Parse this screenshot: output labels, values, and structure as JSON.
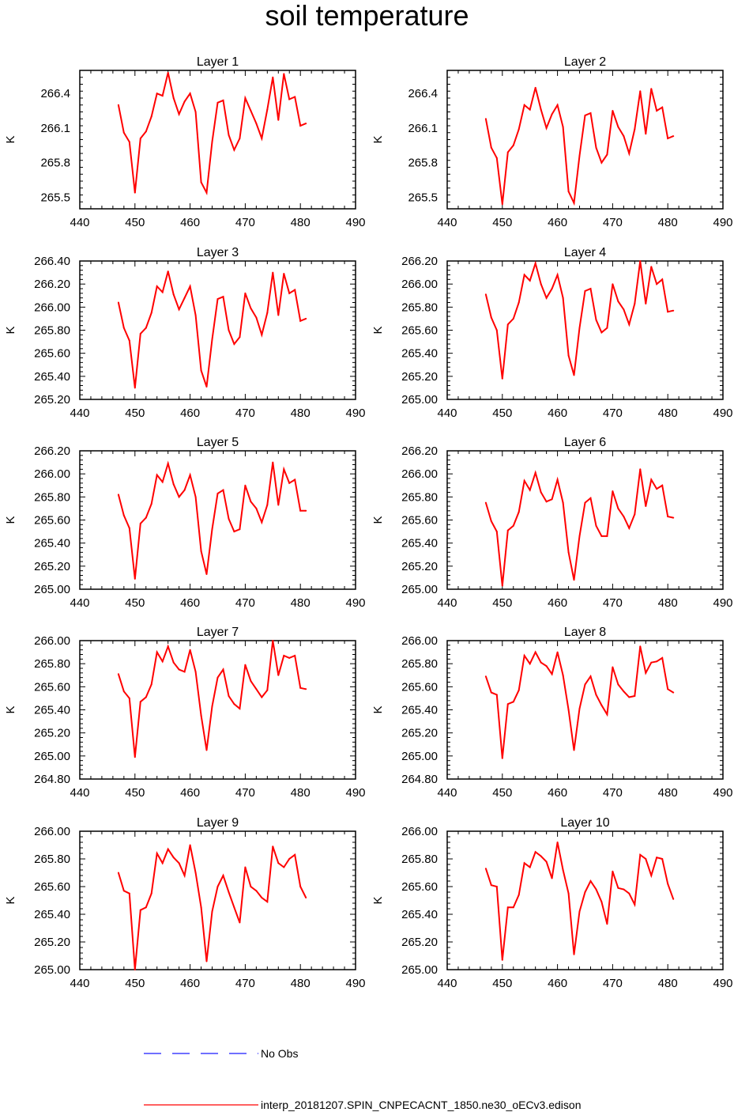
{
  "title": "soil temperature",
  "chart_data": [
    {
      "type": "line",
      "title": "Layer 1",
      "ylabel": "K",
      "xlim": [
        440,
        490
      ],
      "xticks": [
        440,
        450,
        460,
        470,
        480,
        490
      ],
      "ylim": [
        265.4,
        266.6
      ],
      "yticks": [
        265.5,
        265.8,
        266.1,
        266.4
      ],
      "ytick_decimals": 1,
      "x": [
        447,
        448,
        449,
        450,
        451,
        452,
        453,
        454,
        455,
        456,
        457,
        458,
        459,
        460,
        461,
        462,
        463,
        464,
        465,
        466,
        467,
        468,
        469,
        470,
        471,
        472,
        473,
        474,
        475,
        476,
        477,
        478,
        479,
        480,
        481
      ],
      "series": [
        {
          "name": "interp_20181207.SPIN_CNPECACNT_1850.ne30_oECv3.edison",
          "values": [
            266.3,
            266.06,
            265.98,
            265.54,
            266.01,
            266.07,
            266.2,
            266.4,
            266.38,
            266.58,
            266.36,
            266.22,
            266.33,
            266.4,
            266.24,
            265.63,
            265.54,
            265.98,
            266.32,
            266.34,
            266.04,
            265.91,
            266.01,
            266.36,
            266.25,
            266.14,
            266.01,
            266.26,
            266.54,
            266.17,
            266.57,
            266.35,
            266.37,
            266.12,
            266.14
          ]
        }
      ]
    },
    {
      "type": "line",
      "title": "Layer 2",
      "ylabel": "K",
      "xlim": [
        440,
        490
      ],
      "xticks": [
        440,
        450,
        460,
        470,
        480,
        490
      ],
      "ylim": [
        265.4,
        266.6
      ],
      "yticks": [
        265.5,
        265.8,
        266.1,
        266.4
      ],
      "ytick_decimals": 1,
      "x": [
        447,
        448,
        449,
        450,
        451,
        452,
        453,
        454,
        455,
        456,
        457,
        458,
        459,
        460,
        461,
        462,
        463,
        464,
        465,
        466,
        467,
        468,
        469,
        470,
        471,
        472,
        473,
        474,
        475,
        476,
        477,
        478,
        479,
        480,
        481
      ],
      "series": [
        {
          "name": "interp_20181207.SPIN_CNPECACNT_1850.ne30_oECv3.edison",
          "values": [
            266.18,
            265.93,
            265.84,
            265.44,
            265.89,
            265.95,
            266.09,
            266.3,
            266.26,
            266.45,
            266.26,
            266.1,
            266.22,
            266.3,
            266.11,
            265.55,
            265.45,
            265.86,
            266.21,
            266.23,
            265.93,
            265.8,
            265.87,
            266.25,
            266.11,
            266.03,
            265.88,
            266.09,
            266.42,
            266.05,
            266.44,
            266.25,
            266.28,
            266.01,
            266.03
          ]
        }
      ]
    },
    {
      "type": "line",
      "title": "Layer 3",
      "ylabel": "K",
      "xlim": [
        440,
        490
      ],
      "xticks": [
        440,
        450,
        460,
        470,
        480,
        490
      ],
      "ylim": [
        265.2,
        266.4
      ],
      "yticks": [
        265.2,
        265.4,
        265.6,
        265.8,
        266.0,
        266.2,
        266.4
      ],
      "ytick_decimals": 2,
      "x": [
        447,
        448,
        449,
        450,
        451,
        452,
        453,
        454,
        455,
        456,
        457,
        458,
        459,
        460,
        461,
        462,
        463,
        464,
        465,
        466,
        467,
        468,
        469,
        470,
        471,
        472,
        473,
        474,
        475,
        476,
        477,
        478,
        479,
        480,
        481
      ],
      "series": [
        {
          "name": "interp_20181207.SPIN_CNPECACNT_1850.ne30_oECv3.edison",
          "values": [
            266.04,
            265.82,
            265.71,
            265.3,
            265.77,
            265.82,
            265.95,
            266.18,
            266.13,
            266.31,
            266.11,
            265.98,
            266.08,
            266.18,
            265.93,
            265.45,
            265.31,
            265.72,
            266.07,
            266.09,
            265.8,
            265.68,
            265.74,
            266.12,
            265.99,
            265.91,
            265.76,
            265.95,
            266.3,
            265.93,
            266.29,
            266.12,
            266.15,
            265.88,
            265.9
          ]
        }
      ]
    },
    {
      "type": "line",
      "title": "Layer 4",
      "ylabel": "K",
      "xlim": [
        440,
        490
      ],
      "xticks": [
        440,
        450,
        460,
        470,
        480,
        490
      ],
      "ylim": [
        265.0,
        266.2
      ],
      "yticks": [
        265.0,
        265.2,
        265.4,
        265.6,
        265.8,
        266.0,
        266.2
      ],
      "ytick_decimals": 2,
      "x": [
        447,
        448,
        449,
        450,
        451,
        452,
        453,
        454,
        455,
        456,
        457,
        458,
        459,
        460,
        461,
        462,
        463,
        464,
        465,
        466,
        467,
        468,
        469,
        470,
        471,
        472,
        473,
        474,
        475,
        476,
        477,
        478,
        479,
        480,
        481
      ],
      "series": [
        {
          "name": "interp_20181207.SPIN_CNPECACNT_1850.ne30_oECv3.edison",
          "values": [
            265.91,
            265.71,
            265.6,
            265.18,
            265.65,
            265.7,
            265.84,
            266.08,
            266.03,
            266.18,
            266.0,
            265.88,
            265.96,
            266.08,
            265.88,
            265.38,
            265.21,
            265.62,
            265.94,
            265.96,
            265.69,
            265.58,
            265.62,
            266.0,
            265.85,
            265.78,
            265.65,
            265.83,
            266.2,
            265.83,
            266.15,
            266.0,
            266.04,
            265.76,
            265.77
          ]
        }
      ]
    },
    {
      "type": "line",
      "title": "Layer 5",
      "ylabel": "K",
      "xlim": [
        440,
        490
      ],
      "xticks": [
        440,
        450,
        460,
        470,
        480,
        490
      ],
      "ylim": [
        265.0,
        266.2
      ],
      "yticks": [
        265.0,
        265.2,
        265.4,
        265.6,
        265.8,
        266.0,
        266.2
      ],
      "ytick_decimals": 2,
      "x": [
        447,
        448,
        449,
        450,
        451,
        452,
        453,
        454,
        455,
        456,
        457,
        458,
        459,
        460,
        461,
        462,
        463,
        464,
        465,
        466,
        467,
        468,
        469,
        470,
        471,
        472,
        473,
        474,
        475,
        476,
        477,
        478,
        479,
        480,
        481
      ],
      "series": [
        {
          "name": "interp_20181207.SPIN_CNPECACNT_1850.ne30_oECv3.edison",
          "values": [
            265.82,
            265.64,
            265.53,
            265.09,
            265.57,
            265.62,
            265.74,
            265.99,
            265.93,
            266.09,
            265.91,
            265.8,
            265.86,
            265.99,
            265.8,
            265.33,
            265.13,
            265.52,
            265.83,
            265.86,
            265.61,
            265.5,
            265.52,
            265.9,
            265.76,
            265.7,
            265.58,
            265.73,
            266.1,
            265.73,
            266.04,
            265.92,
            265.95,
            265.68,
            265.68
          ]
        }
      ]
    },
    {
      "type": "line",
      "title": "Layer 6",
      "ylabel": "K",
      "xlim": [
        440,
        490
      ],
      "xticks": [
        440,
        450,
        460,
        470,
        480,
        490
      ],
      "ylim": [
        265.0,
        266.2
      ],
      "yticks": [
        265.0,
        265.2,
        265.4,
        265.6,
        265.8,
        266.0,
        266.2
      ],
      "ytick_decimals": 2,
      "x": [
        447,
        448,
        449,
        450,
        451,
        452,
        453,
        454,
        455,
        456,
        457,
        458,
        459,
        460,
        461,
        462,
        463,
        464,
        465,
        466,
        467,
        468,
        469,
        470,
        471,
        472,
        473,
        474,
        475,
        476,
        477,
        478,
        479,
        480,
        481
      ],
      "series": [
        {
          "name": "interp_20181207.SPIN_CNPECACNT_1850.ne30_oECv3.edison",
          "values": [
            265.75,
            265.59,
            265.5,
            265.03,
            265.51,
            265.55,
            265.67,
            265.94,
            265.86,
            266.01,
            265.84,
            265.76,
            265.78,
            265.95,
            265.75,
            265.32,
            265.08,
            265.46,
            265.75,
            265.79,
            265.55,
            265.46,
            265.46,
            265.85,
            265.7,
            265.63,
            265.53,
            265.65,
            266.04,
            265.72,
            265.95,
            265.87,
            265.9,
            265.63,
            265.62
          ]
        }
      ]
    },
    {
      "type": "line",
      "title": "Layer 7",
      "ylabel": "K",
      "xlim": [
        440,
        490
      ],
      "xticks": [
        440,
        450,
        460,
        470,
        480,
        490
      ],
      "ylim": [
        264.8,
        266.0
      ],
      "yticks": [
        264.8,
        265.0,
        265.2,
        265.4,
        265.6,
        265.8,
        266.0
      ],
      "ytick_decimals": 2,
      "x": [
        447,
        448,
        449,
        450,
        451,
        452,
        453,
        454,
        455,
        456,
        457,
        458,
        459,
        460,
        461,
        462,
        463,
        464,
        465,
        466,
        467,
        468,
        469,
        470,
        471,
        472,
        473,
        474,
        475,
        476,
        477,
        478,
        479,
        480,
        481
      ],
      "series": [
        {
          "name": "interp_20181207.SPIN_CNPECACNT_1850.ne30_oECv3.edison",
          "values": [
            265.71,
            265.56,
            265.5,
            264.99,
            265.47,
            265.51,
            265.62,
            265.9,
            265.82,
            265.95,
            265.81,
            265.75,
            265.73,
            265.92,
            265.73,
            265.35,
            265.05,
            265.43,
            265.68,
            265.75,
            265.52,
            265.45,
            265.41,
            265.79,
            265.65,
            265.58,
            265.51,
            265.57,
            266.0,
            265.7,
            265.87,
            265.85,
            265.87,
            265.59,
            265.58
          ]
        }
      ]
    },
    {
      "type": "line",
      "title": "Layer 8",
      "ylabel": "K",
      "xlim": [
        440,
        490
      ],
      "xticks": [
        440,
        450,
        460,
        470,
        480,
        490
      ],
      "ylim": [
        264.8,
        266.0
      ],
      "yticks": [
        264.8,
        265.0,
        265.2,
        265.4,
        265.6,
        265.8,
        266.0
      ],
      "ytick_decimals": 2,
      "x": [
        447,
        448,
        449,
        450,
        451,
        452,
        453,
        454,
        455,
        456,
        457,
        458,
        459,
        460,
        461,
        462,
        463,
        464,
        465,
        466,
        467,
        468,
        469,
        470,
        471,
        472,
        473,
        474,
        475,
        476,
        477,
        478,
        479,
        480,
        481
      ],
      "series": [
        {
          "name": "interp_20181207.SPIN_CNPECACNT_1850.ne30_oECv3.edison",
          "values": [
            265.69,
            265.55,
            265.53,
            264.98,
            265.45,
            265.47,
            265.57,
            265.87,
            265.8,
            265.9,
            265.81,
            265.78,
            265.71,
            265.9,
            265.7,
            265.4,
            265.05,
            265.41,
            265.62,
            265.69,
            265.53,
            265.44,
            265.36,
            265.77,
            265.62,
            265.56,
            265.51,
            265.52,
            265.95,
            265.72,
            265.81,
            265.82,
            265.85,
            265.58,
            265.55
          ]
        }
      ]
    },
    {
      "type": "line",
      "title": "Layer 9",
      "ylabel": "K",
      "xlim": [
        440,
        490
      ],
      "xticks": [
        440,
        450,
        460,
        470,
        480,
        490
      ],
      "ylim": [
        265.0,
        266.0
      ],
      "yticks": [
        265.0,
        265.2,
        265.4,
        265.6,
        265.8,
        266.0
      ],
      "ytick_decimals": 2,
      "x": [
        447,
        448,
        449,
        450,
        451,
        452,
        453,
        454,
        455,
        456,
        457,
        458,
        459,
        460,
        461,
        462,
        463,
        464,
        465,
        466,
        467,
        468,
        469,
        470,
        471,
        472,
        473,
        474,
        475,
        476,
        477,
        478,
        479,
        480,
        481
      ],
      "series": [
        {
          "name": "interp_20181207.SPIN_CNPECACNT_1850.ne30_oECv3.edison",
          "values": [
            265.7,
            265.57,
            265.55,
            265.0,
            265.43,
            265.45,
            265.55,
            265.84,
            265.77,
            265.87,
            265.81,
            265.77,
            265.68,
            265.9,
            265.7,
            265.45,
            265.06,
            265.42,
            265.6,
            265.68,
            265.56,
            265.45,
            265.34,
            265.74,
            265.6,
            265.57,
            265.52,
            265.49,
            265.89,
            265.77,
            265.74,
            265.8,
            265.83,
            265.6,
            265.52
          ]
        }
      ]
    },
    {
      "type": "line",
      "title": "Layer 10",
      "ylabel": "K",
      "xlim": [
        440,
        490
      ],
      "xticks": [
        440,
        450,
        460,
        470,
        480,
        490
      ],
      "ylim": [
        265.0,
        266.0
      ],
      "yticks": [
        265.0,
        265.2,
        265.4,
        265.6,
        265.8,
        266.0
      ],
      "ytick_decimals": 2,
      "x": [
        447,
        448,
        449,
        450,
        451,
        452,
        453,
        454,
        455,
        456,
        457,
        458,
        459,
        460,
        461,
        462,
        463,
        464,
        465,
        466,
        467,
        468,
        469,
        470,
        471,
        472,
        473,
        474,
        475,
        476,
        477,
        478,
        479,
        480,
        481
      ],
      "series": [
        {
          "name": "interp_20181207.SPIN_CNPECACNT_1850.ne30_oECv3.edison",
          "values": [
            265.73,
            265.61,
            265.6,
            265.07,
            265.45,
            265.45,
            265.54,
            265.77,
            265.74,
            265.85,
            265.82,
            265.78,
            265.66,
            265.92,
            265.72,
            265.55,
            265.11,
            265.42,
            265.56,
            265.64,
            265.58,
            265.49,
            265.33,
            265.71,
            265.59,
            265.58,
            265.55,
            265.47,
            265.83,
            265.8,
            265.68,
            265.81,
            265.8,
            265.62,
            265.51
          ]
        }
      ]
    }
  ],
  "legend": {
    "no_obs_label": "No Obs",
    "no_obs_color": "#1a1aff",
    "model_label": "interp_20181207.SPIN_CNPECACNT_1850.ne30_oECv3.edison",
    "model_color": "#ff0000"
  }
}
